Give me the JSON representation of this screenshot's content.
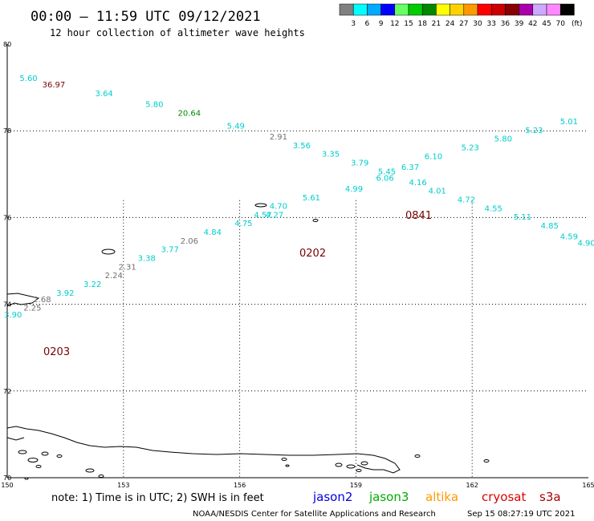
{
  "header": {
    "title": "00:00 – 11:59 UTC 09/12/2021",
    "subtitle": "12 hour collection of altimeter wave heights"
  },
  "legend": {
    "unit": "(ft)",
    "bins": [
      {
        "label": "3",
        "color": "#808080"
      },
      {
        "label": "6",
        "color": "#00ffff"
      },
      {
        "label": "9",
        "color": "#00aaff"
      },
      {
        "label": "12",
        "color": "#0000ff"
      },
      {
        "label": "15",
        "color": "#66ff66"
      },
      {
        "label": "18",
        "color": "#00cc00"
      },
      {
        "label": "21",
        "color": "#008800"
      },
      {
        "label": "24",
        "color": "#ffff00"
      },
      {
        "label": "27",
        "color": "#ffd200"
      },
      {
        "label": "30",
        "color": "#ff9900"
      },
      {
        "label": "33",
        "color": "#ff0000"
      },
      {
        "label": "36",
        "color": "#cc0000"
      },
      {
        "label": "39",
        "color": "#880000"
      },
      {
        "label": "42",
        "color": "#aa00aa"
      },
      {
        "label": "45",
        "color": "#ccaaff"
      },
      {
        "label": "70",
        "color": "#ff88ff"
      },
      {
        "label": "",
        "color": "#000000"
      }
    ]
  },
  "axes": {
    "x_ticks": [
      "150",
      "153",
      "156",
      "159",
      "162",
      "165"
    ],
    "y_ticks": [
      "80",
      "78",
      "76",
      "74",
      "72",
      "70"
    ]
  },
  "passes": [
    {
      "time": "0841"
    },
    {
      "time": "0202"
    },
    {
      "time": "0203"
    }
  ],
  "observations": [
    {
      "v": "5.60",
      "lon": 150.55,
      "lat": 79.15,
      "color": "#00cccc"
    },
    {
      "v": "36.97",
      "lon": 151.2,
      "lat": 79.0,
      "color": "#7a0000"
    },
    {
      "v": "3.64",
      "lon": 152.5,
      "lat": 78.8,
      "color": "#00cccc"
    },
    {
      "v": "5.80",
      "lon": 153.8,
      "lat": 78.55,
      "color": "#00cccc"
    },
    {
      "v": "20.64",
      "lon": 154.7,
      "lat": 78.35,
      "color": "#008800"
    },
    {
      "v": "5.49",
      "lon": 155.9,
      "lat": 78.05,
      "color": "#00cccc"
    },
    {
      "v": "2.91",
      "lon": 157.0,
      "lat": 77.8,
      "color": "#707070"
    },
    {
      "v": "3.56",
      "lon": 157.6,
      "lat": 77.6,
      "color": "#00cccc"
    },
    {
      "v": "3.35",
      "lon": 158.35,
      "lat": 77.4,
      "color": "#00cccc"
    },
    {
      "v": "3.79",
      "lon": 159.1,
      "lat": 77.2,
      "color": "#00cccc"
    },
    {
      "v": "5.45",
      "lon": 159.8,
      "lat": 77.0,
      "color": "#00cccc"
    },
    {
      "v": "6.37",
      "lon": 160.4,
      "lat": 77.1,
      "color": "#00cccc"
    },
    {
      "v": "6.10",
      "lon": 161.0,
      "lat": 77.35,
      "color": "#00cccc"
    },
    {
      "v": "5.23",
      "lon": 161.95,
      "lat": 77.55,
      "color": "#00cccc"
    },
    {
      "v": "5.80",
      "lon": 162.8,
      "lat": 77.75,
      "color": "#00cccc"
    },
    {
      "v": "5.23",
      "lon": 163.6,
      "lat": 77.95,
      "color": "#00cccc"
    },
    {
      "v": "5.01",
      "lon": 164.5,
      "lat": 78.15,
      "color": "#00cccc"
    },
    {
      "v": "6.06",
      "lon": 159.75,
      "lat": 76.85,
      "color": "#00cccc"
    },
    {
      "v": "4.16",
      "lon": 160.6,
      "lat": 76.75,
      "color": "#00cccc"
    },
    {
      "v": "4.01",
      "lon": 161.1,
      "lat": 76.55,
      "color": "#00cccc"
    },
    {
      "v": "4.72",
      "lon": 161.85,
      "lat": 76.35,
      "color": "#00cccc"
    },
    {
      "v": "4.55",
      "lon": 162.55,
      "lat": 76.15,
      "color": "#00cccc"
    },
    {
      "v": "5.11",
      "lon": 163.3,
      "lat": 75.95,
      "color": "#00cccc"
    },
    {
      "v": "4.85",
      "lon": 164.0,
      "lat": 75.75,
      "color": "#00cccc"
    },
    {
      "v": "4.59",
      "lon": 164.5,
      "lat": 75.5,
      "color": "#00cccc"
    },
    {
      "v": "4.90",
      "lon": 164.95,
      "lat": 75.35,
      "color": "#00cccc"
    },
    {
      "v": "4.99",
      "lon": 158.95,
      "lat": 76.6,
      "color": "#00cccc"
    },
    {
      "v": "5.61",
      "lon": 157.85,
      "lat": 76.4,
      "color": "#00cccc"
    },
    {
      "v": "4.70",
      "lon": 157.0,
      "lat": 76.2,
      "color": "#00cccc"
    },
    {
      "v": "4.57",
      "lon": 156.6,
      "lat": 76.0,
      "color": "#00cccc"
    },
    {
      "v": "4.27",
      "lon": 156.9,
      "lat": 76.0,
      "color": "#00cccc"
    },
    {
      "v": "4.75",
      "lon": 156.1,
      "lat": 75.8,
      "color": "#00cccc"
    },
    {
      "v": "4.84",
      "lon": 155.3,
      "lat": 75.6,
      "color": "#00cccc"
    },
    {
      "v": "2.06",
      "lon": 154.7,
      "lat": 75.4,
      "color": "#707070"
    },
    {
      "v": "3.77",
      "lon": 154.2,
      "lat": 75.2,
      "color": "#00cccc"
    },
    {
      "v": "3.38",
      "lon": 153.6,
      "lat": 75.0,
      "color": "#00cccc"
    },
    {
      "v": "2.31",
      "lon": 153.1,
      "lat": 74.8,
      "color": "#707070"
    },
    {
      "v": "2.24",
      "lon": 152.75,
      "lat": 74.6,
      "color": "#707070"
    },
    {
      "v": "3.22",
      "lon": 152.2,
      "lat": 74.4,
      "color": "#00cccc"
    },
    {
      "v": "3.92",
      "lon": 151.5,
      "lat": 74.2,
      "color": "#00cccc"
    },
    {
      "v": "2.68",
      "lon": 150.9,
      "lat": 74.05,
      "color": "#707070"
    },
    {
      "v": "2.25",
      "lon": 150.65,
      "lat": 73.85,
      "color": "#707070"
    },
    {
      "v": "3.90",
      "lon": 150.15,
      "lat": 73.7,
      "color": "#00cccc"
    }
  ],
  "footer": {
    "note": "note:  1) Time is in UTC;  2) SWH is in feet",
    "satellites": [
      {
        "name": "jason2",
        "color": "#0000dd"
      },
      {
        "name": "jason3",
        "color": "#00aa00"
      },
      {
        "name": "altika",
        "color": "#ff9900"
      },
      {
        "name": "cryosat",
        "color": "#dd0000"
      },
      {
        "name": "s3a",
        "color": "#aa0000"
      }
    ],
    "credit": "NOAA/NESDIS Center for Satellite Applications and Research",
    "timestamp": "Sep 15 08:27:19 UTC 2021"
  }
}
